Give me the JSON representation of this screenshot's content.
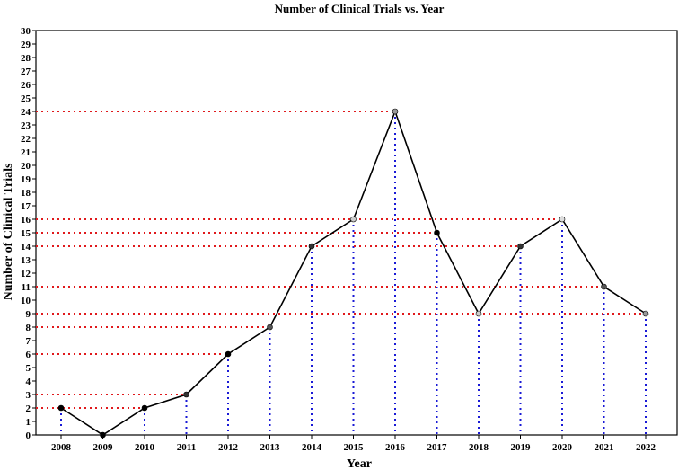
{
  "chart_data": {
    "type": "line",
    "title": "Number of Clinical Trials vs. Year",
    "xlabel": "Year",
    "ylabel": "Number of Clinical Trials",
    "x": [
      2008,
      2009,
      2010,
      2011,
      2012,
      2013,
      2014,
      2015,
      2016,
      2017,
      2018,
      2019,
      2020,
      2021,
      2022
    ],
    "values": [
      2,
      0,
      2,
      3,
      6,
      8,
      14,
      16,
      24,
      15,
      9,
      14,
      16,
      11,
      9
    ],
    "ylim": [
      0,
      30
    ],
    "yticks": [
      0,
      1,
      2,
      3,
      4,
      5,
      6,
      7,
      8,
      9,
      10,
      11,
      12,
      13,
      14,
      15,
      16,
      17,
      18,
      19,
      20,
      21,
      22,
      23,
      24,
      25,
      26,
      27,
      28,
      29,
      30
    ],
    "xticks": [
      "2008",
      "2009",
      "2010",
      "2011",
      "2012",
      "2013",
      "2014",
      "2015",
      "2016",
      "2017",
      "2018",
      "2019",
      "2020",
      "2021",
      "2022"
    ],
    "grid": false,
    "line_color": "#000000",
    "horizontal_guide_color": "#e0191c",
    "vertical_guide_color": "#1a1ad6"
  }
}
